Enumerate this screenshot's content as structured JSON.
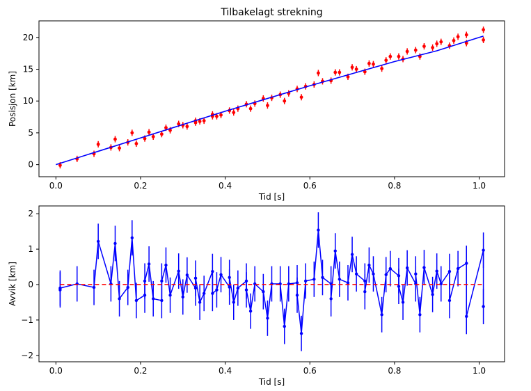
{
  "colors": {
    "data": "#ff0000",
    "model": "#0000ff",
    "zero": "#ff0000"
  },
  "chart_data": [
    {
      "type": "scatter",
      "title": "Tilbakelagt strekning",
      "xlabel": "Tid [s]",
      "ylabel": "Posisjon [km]",
      "xlim": [
        -0.04,
        1.06
      ],
      "ylim": [
        -1.9,
        22.6
      ],
      "xticks": [
        0.0,
        0.2,
        0.4,
        0.6,
        0.8,
        1.0
      ],
      "xtick_labels": [
        "0.0",
        "0.2",
        "0.4",
        "0.6",
        "0.8",
        "1.0"
      ],
      "yticks": [
        0,
        5,
        10,
        15,
        20
      ],
      "ytick_labels": [
        "0",
        "5",
        "10",
        "15",
        "20"
      ],
      "grid": false,
      "series": [
        {
          "kind": "errorbar",
          "color": "#ff0000",
          "yerr": 0.5,
          "x": [
            0.01,
            0.05,
            0.09,
            0.1,
            0.13,
            0.14,
            0.15,
            0.17,
            0.18,
            0.19,
            0.21,
            0.22,
            0.23,
            0.25,
            0.26,
            0.27,
            0.29,
            0.3,
            0.31,
            0.33,
            0.33,
            0.34,
            0.35,
            0.37,
            0.37,
            0.38,
            0.39,
            0.41,
            0.42,
            0.43,
            0.45,
            0.46,
            0.47,
            0.49,
            0.5,
            0.51,
            0.53,
            0.54,
            0.55,
            0.57,
            0.58,
            0.59,
            0.61,
            0.62,
            0.63,
            0.65,
            0.66,
            0.67,
            0.69,
            0.7,
            0.71,
            0.73,
            0.74,
            0.75,
            0.77,
            0.78,
            0.79,
            0.81,
            0.82,
            0.83,
            0.85,
            0.86,
            0.87,
            0.89,
            0.9,
            0.91,
            0.93,
            0.94,
            0.95,
            0.97,
            0.97,
            1.01,
            1.01
          ],
          "y": [
            -0.1,
            0.9,
            1.7,
            3.2,
            2.7,
            4.0,
            2.6,
            3.5,
            5.0,
            3.3,
            4.1,
            5.1,
            4.4,
            4.8,
            5.8,
            5.4,
            6.4,
            6.2,
            6.0,
            6.9,
            6.6,
            6.8,
            6.9,
            7.9,
            7.6,
            7.6,
            7.8,
            8.5,
            8.2,
            8.8,
            9.5,
            8.8,
            9.6,
            10.4,
            9.3,
            10.5,
            11.0,
            10.0,
            11.2,
            11.9,
            10.6,
            12.3,
            12.6,
            14.4,
            13.1,
            13.2,
            14.5,
            14.5,
            13.8,
            15.3,
            15.0,
            14.6,
            15.9,
            15.8,
            15.1,
            16.4,
            17.0,
            17.0,
            16.6,
            17.8,
            18.0,
            17.0,
            18.6,
            18.4,
            19.0,
            19.3,
            18.7,
            19.5,
            20.1,
            20.4,
            19.1,
            21.2,
            19.6
          ]
        },
        {
          "kind": "line",
          "color": "#0000ff",
          "x": [
            0.0,
            0.1,
            0.2,
            0.3,
            0.4,
            0.5,
            0.6,
            0.7,
            0.8,
            0.9,
            1.0,
            1.01
          ],
          "y": [
            0.0,
            2.1,
            4.2,
            6.3,
            8.4,
            10.4,
            12.4,
            14.3,
            16.2,
            17.9,
            20.0,
            20.2
          ]
        }
      ]
    },
    {
      "type": "line",
      "title": "",
      "xlabel": "Tid [s]",
      "ylabel": "Avvik [km]",
      "xlim": [
        -0.04,
        1.06
      ],
      "ylim": [
        -2.18,
        2.22
      ],
      "xticks": [
        0.0,
        0.2,
        0.4,
        0.6,
        0.8,
        1.0
      ],
      "xtick_labels": [
        "0.0",
        "0.2",
        "0.4",
        "0.6",
        "0.8",
        "1.0"
      ],
      "yticks": [
        -2,
        -1,
        0,
        1,
        2
      ],
      "ytick_labels": [
        "−2",
        "−1",
        "0",
        "1",
        "2"
      ],
      "grid": false,
      "series": [
        {
          "kind": "errorbar-line",
          "color": "#0000ff",
          "yerr": 0.5,
          "x": [
            0.01,
            0.01,
            0.05,
            0.09,
            0.1,
            0.13,
            0.14,
            0.15,
            0.17,
            0.18,
            0.19,
            0.21,
            0.21,
            0.22,
            0.23,
            0.25,
            0.25,
            0.26,
            0.27,
            0.29,
            0.3,
            0.31,
            0.33,
            0.33,
            0.34,
            0.35,
            0.37,
            0.37,
            0.38,
            0.39,
            0.41,
            0.41,
            0.42,
            0.43,
            0.45,
            0.45,
            0.46,
            0.47,
            0.49,
            0.5,
            0.51,
            0.53,
            0.54,
            0.55,
            0.57,
            0.57,
            0.58,
            0.59,
            0.61,
            0.62,
            0.63,
            0.65,
            0.65,
            0.66,
            0.67,
            0.69,
            0.7,
            0.71,
            0.73,
            0.73,
            0.74,
            0.75,
            0.77,
            0.78,
            0.79,
            0.81,
            0.81,
            0.82,
            0.83,
            0.85,
            0.85,
            0.86,
            0.87,
            0.89,
            0.9,
            0.91,
            0.93,
            0.93,
            0.95,
            0.97,
            0.97,
            1.01,
            1.01
          ],
          "y": [
            -0.15,
            -0.1,
            0.02,
            -0.08,
            1.22,
            0.02,
            1.16,
            -0.4,
            -0.08,
            1.32,
            -0.45,
            -0.3,
            0.1,
            0.58,
            -0.4,
            -0.45,
            0.1,
            0.55,
            -0.3,
            0.38,
            -0.35,
            0.27,
            -0.1,
            0.18,
            -0.5,
            -0.25,
            0.37,
            -0.25,
            -0.15,
            0.28,
            -0.07,
            0.2,
            -0.5,
            -0.1,
            0.1,
            -0.15,
            -0.75,
            0.02,
            -0.2,
            -0.95,
            0.02,
            0.02,
            -1.18,
            0.02,
            0.05,
            -0.3,
            -1.38,
            0.1,
            0.15,
            1.54,
            0.2,
            0.02,
            -0.4,
            0.95,
            0.15,
            0.05,
            0.85,
            0.3,
            0.1,
            -0.2,
            0.55,
            0.3,
            -0.85,
            0.28,
            0.45,
            0.25,
            -0.05,
            -0.5,
            0.47,
            0.02,
            0.3,
            -0.85,
            0.48,
            -0.28,
            0.38,
            0.02,
            0.37,
            -0.45,
            0.45,
            0.6,
            -0.9,
            0.97,
            -0.62
          ]
        },
        {
          "kind": "dashed-line",
          "color": "#ff0000",
          "x": [
            0.01,
            1.01
          ],
          "y": [
            0.0,
            0.0
          ]
        }
      ]
    }
  ]
}
